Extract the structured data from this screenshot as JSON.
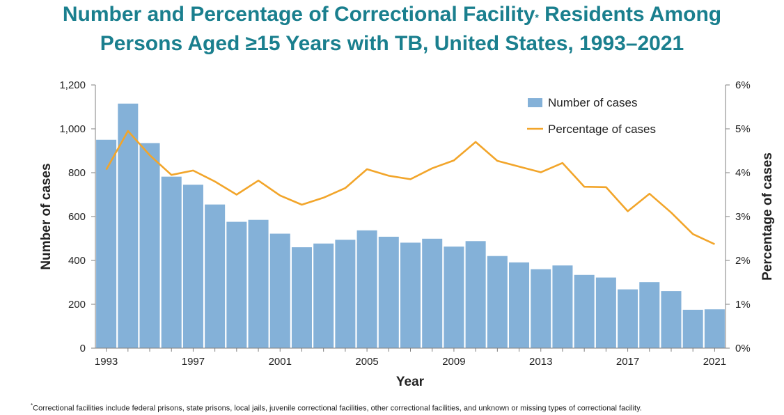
{
  "title": {
    "line1_a": "Number and Percentage of Correctional Facility",
    "line1_mark": "*",
    "line1_b": " Residents Among",
    "line2": "Persons Aged ≥15 Years with TB, United States, 1993–2021"
  },
  "footnote": {
    "mark": "*",
    "text": "Correctional  facilities include federal prisons, state prisons, local jails, juvenile correctional facilities, other correctional facilities, and unknown  or missing types of correctional facility."
  },
  "colors": {
    "bars": "#84b1d8",
    "line": "#f2a52a",
    "title": "#1a7f8e"
  },
  "chart_data": {
    "type": "bar+line",
    "xlabel": "Year",
    "ylabel": "Number of cases",
    "y2label": "Percentage of cases",
    "categories": [
      1993,
      1994,
      1995,
      1996,
      1997,
      1998,
      1999,
      2000,
      2001,
      2002,
      2003,
      2004,
      2005,
      2006,
      2007,
      2008,
      2009,
      2010,
      2011,
      2012,
      2013,
      2014,
      2015,
      2016,
      2017,
      2018,
      2019,
      2020,
      2021
    ],
    "x_tick_labels": [
      "1993",
      "1997",
      "2001",
      "2005",
      "2009",
      "2013",
      "2017",
      "2021"
    ],
    "ylim": [
      0,
      1200
    ],
    "y_ticks": [
      "0",
      "200",
      "400",
      "600",
      "800",
      "1,000",
      "1,200"
    ],
    "y2lim": [
      0,
      6
    ],
    "y2_ticks": [
      "0%",
      "1%",
      "2%",
      "3%",
      "4%",
      "5%",
      "6%"
    ],
    "legend_position": "top-right",
    "series": [
      {
        "name": "Number of cases",
        "type": "bar",
        "axis": "left",
        "values": [
          950,
          1115,
          935,
          782,
          745,
          655,
          576,
          585,
          522,
          460,
          477,
          494,
          537,
          508,
          481,
          499,
          463,
          488,
          420,
          391,
          360,
          377,
          334,
          322,
          268,
          301,
          260,
          175,
          177
        ]
      },
      {
        "name": "Percentage of cases",
        "type": "line",
        "axis": "right",
        "values": [
          4.07,
          4.95,
          4.4,
          3.95,
          4.05,
          3.8,
          3.5,
          3.82,
          3.48,
          3.27,
          3.43,
          3.65,
          4.08,
          3.93,
          3.85,
          4.1,
          4.28,
          4.7,
          4.27,
          4.14,
          4.01,
          4.22,
          3.68,
          3.67,
          3.12,
          3.52,
          3.09,
          2.6,
          2.37
        ]
      }
    ]
  }
}
